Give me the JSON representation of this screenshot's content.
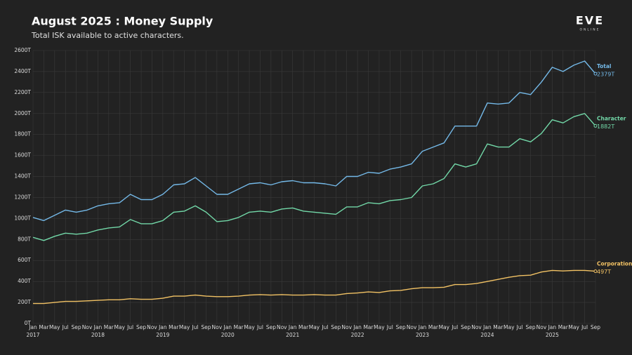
{
  "chart_data": {
    "type": "line",
    "title": "August 2025 : Money Supply",
    "subtitle": "Total ISK available to active characters.",
    "logo": "EVE",
    "logo_sub": "ONLINE",
    "categories": [
      "Jan",
      "Mar",
      "May",
      "Jul",
      "Sep",
      "Nov",
      "Jan",
      "Mar",
      "May",
      "Jul",
      "Sep",
      "Nov",
      "Jan",
      "Mar",
      "May",
      "Jul",
      "Sep",
      "Nov",
      "Jan",
      "Mar",
      "May",
      "Jul",
      "Sep",
      "Nov",
      "Jan",
      "Mar",
      "May",
      "Jul",
      "Sep",
      "Nov",
      "Jan",
      "Mar",
      "May",
      "Jul",
      "Sep",
      "Nov",
      "Jan",
      "Mar",
      "May",
      "Jul",
      "Sep",
      "Nov",
      "Jan",
      "Mar",
      "May",
      "Jul",
      "Sep",
      "Nov",
      "Jan",
      "Mar",
      "May",
      "Jul",
      "Sep"
    ],
    "years": [
      "2017",
      "2018",
      "2019",
      "2020",
      "2021",
      "2022",
      "2023",
      "2024",
      "2025"
    ],
    "ylim": [
      0,
      2600
    ],
    "yticks": [
      {
        "value": 0,
        "label": "0T"
      },
      {
        "value": 200,
        "label": "200T"
      },
      {
        "value": 400,
        "label": "400T"
      },
      {
        "value": 600,
        "label": "600T"
      },
      {
        "value": 800,
        "label": "800T"
      },
      {
        "value": 1000,
        "label": "1000T"
      },
      {
        "value": 1200,
        "label": "1200T"
      },
      {
        "value": 1400,
        "label": "1400T"
      },
      {
        "value": 1600,
        "label": "1600T"
      },
      {
        "value": 1800,
        "label": "1800T"
      },
      {
        "value": 2000,
        "label": "2000T"
      },
      {
        "value": 2200,
        "label": "2200T"
      },
      {
        "value": 2400,
        "label": "2400T"
      },
      {
        "value": 2600,
        "label": "2600T"
      }
    ],
    "grid": true,
    "series": [
      {
        "name": "Total",
        "color": "#74b9e8",
        "values": [
          1010,
          980,
          1030,
          1080,
          1060,
          1080,
          1120,
          1140,
          1150,
          1230,
          1180,
          1180,
          1230,
          1320,
          1330,
          1390,
          1310,
          1230,
          1230,
          1280,
          1330,
          1340,
          1320,
          1350,
          1360,
          1340,
          1340,
          1330,
          1310,
          1400,
          1400,
          1440,
          1430,
          1470,
          1490,
          1520,
          1640,
          1680,
          1720,
          1880,
          1880,
          1880,
          2100,
          2090,
          2100,
          2200,
          2180,
          2300,
          2440,
          2400,
          2460,
          2500,
          2379
        ],
        "value_labels": [
          null,
          null,
          null,
          null,
          null,
          null,
          null,
          null,
          null,
          null,
          null,
          null,
          null,
          null,
          null,
          null,
          null,
          null,
          null,
          null,
          null,
          null,
          null,
          null,
          null,
          null,
          null,
          null,
          null,
          null,
          null,
          null,
          null,
          null,
          null,
          null,
          null,
          null,
          null,
          null,
          null,
          null,
          null,
          null,
          null,
          null,
          null,
          null,
          null,
          null,
          null,
          null,
          "2379T"
        ]
      },
      {
        "name": "Character",
        "color": "#72d8a8",
        "values": [
          820,
          790,
          830,
          860,
          850,
          860,
          890,
          910,
          920,
          990,
          950,
          950,
          980,
          1060,
          1070,
          1120,
          1060,
          970,
          980,
          1010,
          1060,
          1070,
          1060,
          1090,
          1100,
          1070,
          1060,
          1050,
          1040,
          1110,
          1110,
          1150,
          1140,
          1170,
          1180,
          1200,
          1310,
          1330,
          1380,
          1520,
          1490,
          1520,
          1710,
          1680,
          1680,
          1760,
          1730,
          1810,
          1940,
          1910,
          1970,
          2000,
          1882
        ],
        "value_labels": [
          null,
          null,
          null,
          null,
          null,
          null,
          null,
          null,
          null,
          null,
          null,
          null,
          null,
          null,
          null,
          null,
          null,
          null,
          null,
          null,
          null,
          null,
          null,
          null,
          null,
          null,
          null,
          null,
          null,
          null,
          null,
          null,
          null,
          null,
          null,
          null,
          null,
          null,
          null,
          null,
          null,
          null,
          null,
          null,
          null,
          null,
          null,
          null,
          null,
          null,
          null,
          null,
          "1882T"
        ]
      },
      {
        "name": "Corporation",
        "color": "#f2c264",
        "values": [
          190,
          190,
          200,
          210,
          210,
          215,
          220,
          225,
          225,
          235,
          230,
          230,
          240,
          260,
          260,
          270,
          260,
          255,
          255,
          260,
          270,
          275,
          270,
          275,
          270,
          270,
          275,
          270,
          270,
          285,
          290,
          300,
          295,
          310,
          315,
          330,
          340,
          340,
          345,
          370,
          370,
          380,
          400,
          420,
          440,
          455,
          460,
          490,
          505,
          500,
          505,
          505,
          497
        ],
        "value_labels": [
          null,
          null,
          null,
          null,
          null,
          null,
          null,
          null,
          null,
          null,
          null,
          null,
          null,
          null,
          null,
          null,
          null,
          null,
          null,
          null,
          null,
          null,
          null,
          null,
          null,
          null,
          null,
          null,
          null,
          null,
          null,
          null,
          null,
          null,
          null,
          null,
          null,
          null,
          null,
          null,
          null,
          null,
          null,
          null,
          null,
          null,
          null,
          null,
          null,
          null,
          null,
          null,
          "497T"
        ]
      }
    ]
  }
}
